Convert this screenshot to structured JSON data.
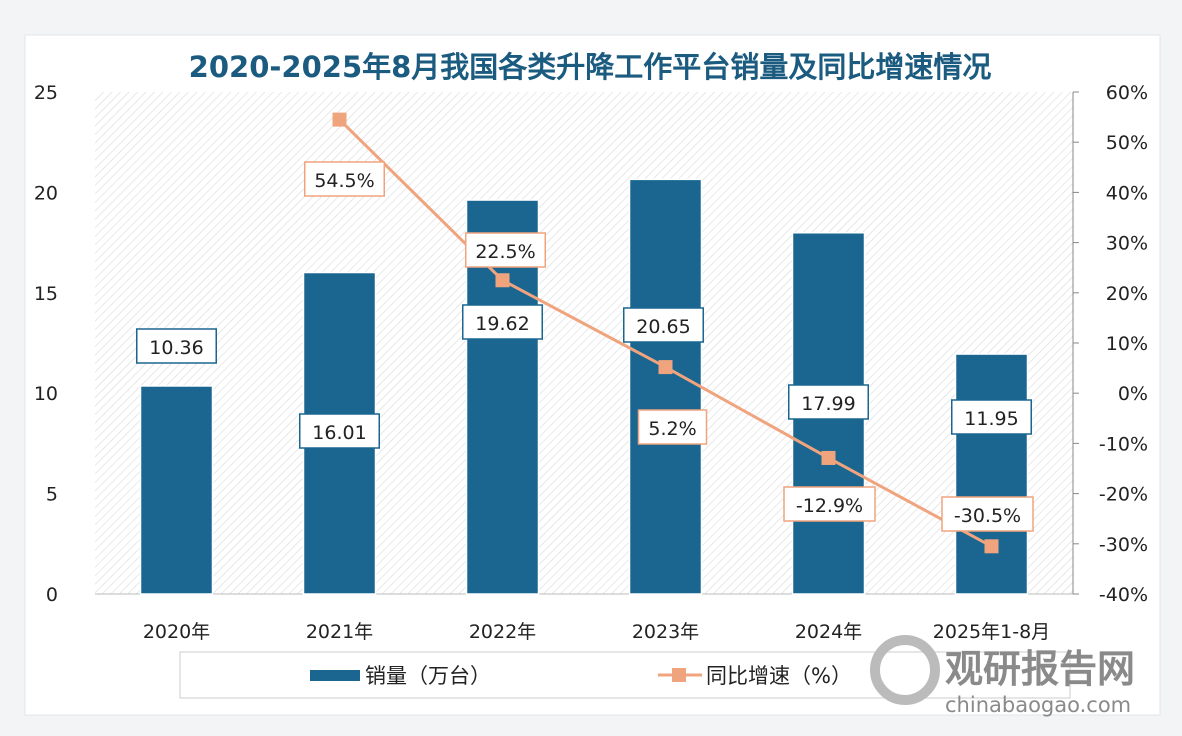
{
  "chart_data": {
    "type": "bar+line",
    "title": "2020-2025年8月我国各类升降工作平台销量及同比增速情况",
    "categories": [
      "2020年",
      "2021年",
      "2022年",
      "2023年",
      "2024年",
      "2025年1-8月"
    ],
    "series": [
      {
        "name": "销量（万台）",
        "type": "bar",
        "axis": "left",
        "values": [
          10.36,
          16.01,
          19.62,
          20.65,
          17.99,
          11.95
        ],
        "labels": [
          "10.36",
          "16.01",
          "19.62",
          "20.65",
          "17.99",
          "11.95"
        ],
        "color": "#1a6690"
      },
      {
        "name": "同比增速（%）",
        "type": "line",
        "axis": "right",
        "values": [
          null,
          54.5,
          22.5,
          5.2,
          -12.9,
          -30.5
        ],
        "labels": [
          "",
          "54.5%",
          "22.5%",
          "5.2%",
          "-12.9%",
          "-30.5%"
        ],
        "color": "#f0a47e"
      }
    ],
    "y_left": {
      "range": [
        0,
        25
      ],
      "ticks": [
        "0",
        "5",
        "10",
        "15",
        "20",
        "25"
      ]
    },
    "y_right": {
      "range": [
        -40,
        60
      ],
      "ticks": [
        "-40%",
        "-30%",
        "-20%",
        "-10%",
        "0%",
        "10%",
        "20%",
        "30%",
        "40%",
        "50%",
        "60%"
      ]
    },
    "legend": {
      "placement": "bottom",
      "entries": [
        "销量（万台）",
        "同比增速（%）"
      ]
    },
    "grid": false
  },
  "watermark": {
    "brand": "观研报告网",
    "site": "chinabaogao.com"
  },
  "colors": {
    "title": "#1b5b80",
    "bar": "#1a6690",
    "line": "#f0a47e",
    "label_border_bar": "#1a6690",
    "label_border_line": "#f0a47e"
  }
}
